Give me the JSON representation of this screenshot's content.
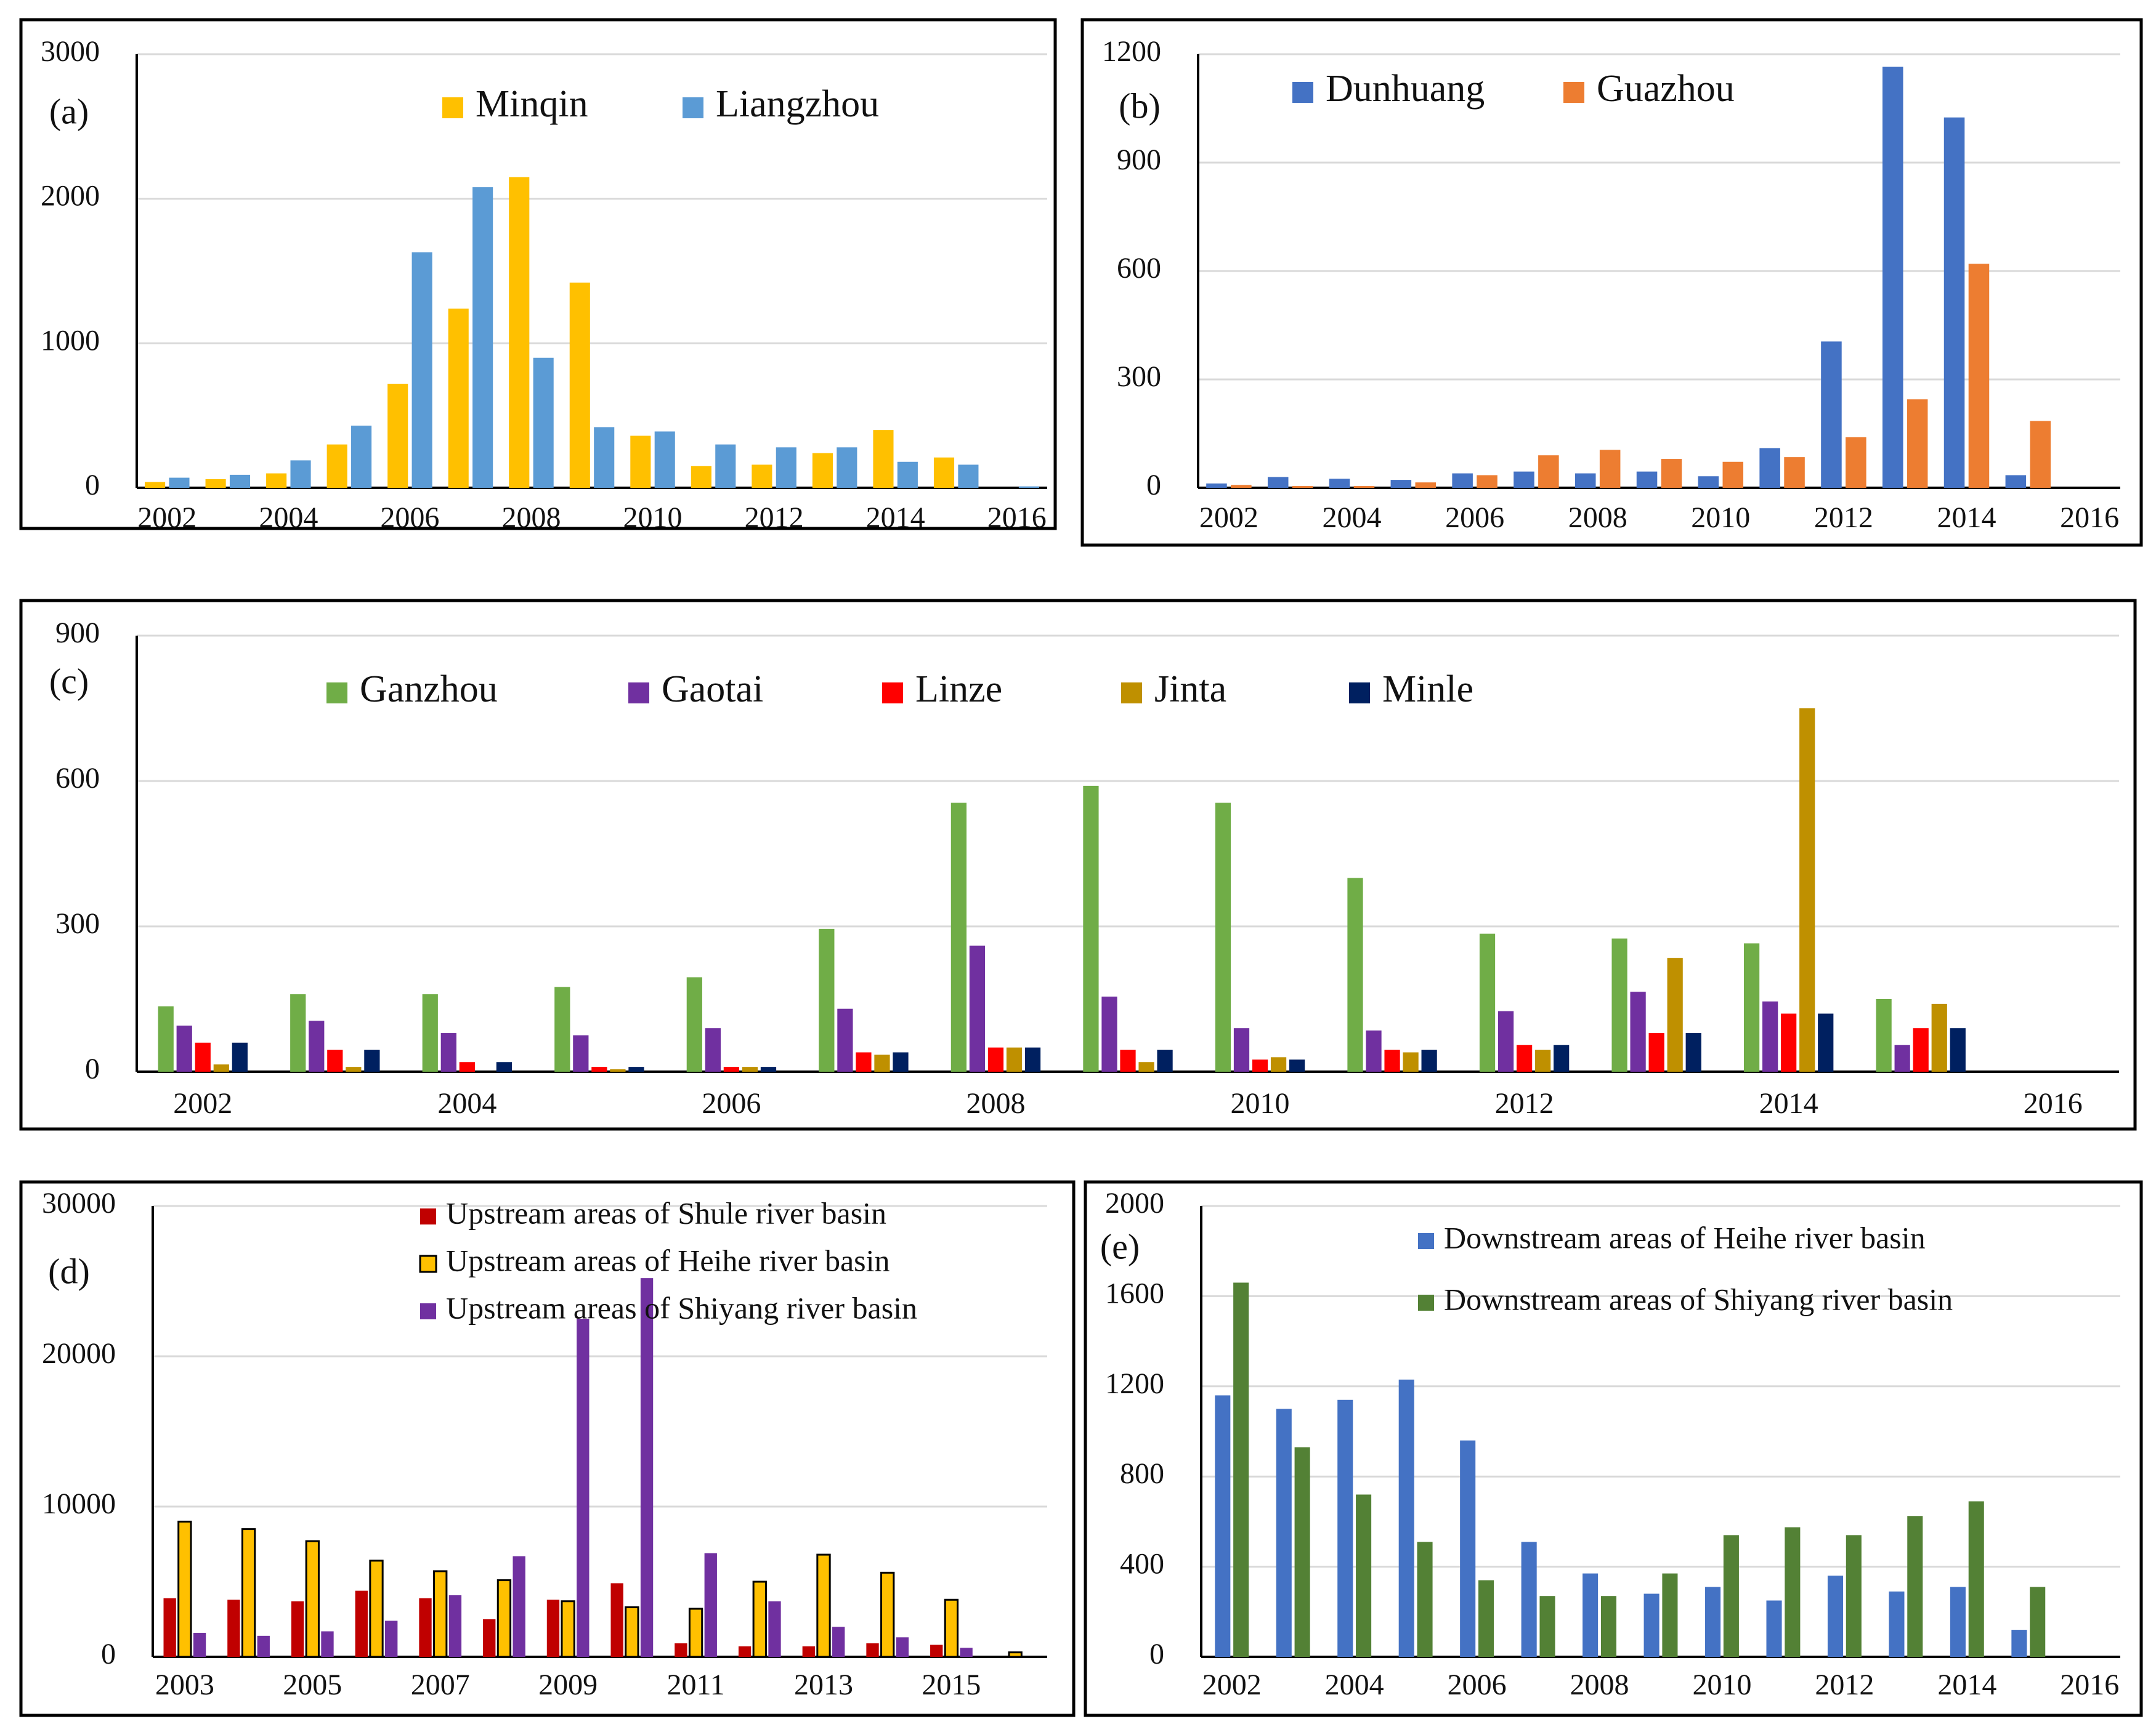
{
  "colors": {
    "minqin": "#FFC000",
    "liangzhou": "#5B9BD5",
    "dunhuang": "#4472C4",
    "guazhou": "#ED7D31",
    "ganzhou": "#70AD47",
    "gaotai": "#7030A0",
    "linze": "#FF0000",
    "jinta": "#BF9000",
    "minle": "#002060",
    "shule_up": "#C00000",
    "heihe_up": "#FFC000",
    "shiyang_up": "#7030A0",
    "heihe_down": "#4472C4",
    "shiyang_down": "#538135",
    "grid": "#D9D9D9",
    "axis": "#000000"
  },
  "chart_data": [
    {
      "panel": "(a)",
      "type": "bar",
      "x": [
        2002,
        2003,
        2004,
        2005,
        2006,
        2007,
        2008,
        2009,
        2010,
        2011,
        2012,
        2013,
        2014,
        2015,
        2016
      ],
      "xticks": [
        "2002",
        "2004",
        "2006",
        "2008",
        "2010",
        "2012",
        "2014",
        "2016"
      ],
      "yticks": [
        "0",
        "1000",
        "2000",
        "3000"
      ],
      "ylim": [
        0,
        3000
      ],
      "legend_position": "top-center",
      "series": [
        {
          "name": "Minqin",
          "color_key": "minqin",
          "values": [
            40,
            60,
            100,
            300,
            720,
            1240,
            2150,
            1420,
            360,
            150,
            160,
            240,
            400,
            210,
            0
          ]
        },
        {
          "name": "Liangzhou",
          "color_key": "liangzhou",
          "values": [
            70,
            90,
            190,
            430,
            1630,
            2080,
            900,
            420,
            390,
            300,
            280,
            280,
            180,
            160,
            10
          ]
        }
      ]
    },
    {
      "panel": "(b)",
      "type": "bar",
      "x": [
        2002,
        2003,
        2004,
        2005,
        2006,
        2007,
        2008,
        2009,
        2010,
        2011,
        2012,
        2013,
        2014,
        2015,
        2016
      ],
      "xticks": [
        "2002",
        "2004",
        "2006",
        "2008",
        "2010",
        "2012",
        "2014",
        "2016"
      ],
      "yticks": [
        "0",
        "300",
        "600",
        "900",
        "1200"
      ],
      "ylim": [
        0,
        1200
      ],
      "legend_position": "top-left",
      "series": [
        {
          "name": "Dunhuang",
          "color_key": "dunhuang",
          "values": [
            12,
            30,
            25,
            22,
            40,
            45,
            40,
            45,
            32,
            110,
            405,
            1165,
            1025,
            35,
            0
          ]
        },
        {
          "name": "Guazhou",
          "color_key": "guazhou",
          "values": [
            8,
            5,
            5,
            15,
            35,
            90,
            105,
            80,
            72,
            85,
            140,
            245,
            620,
            185,
            0
          ]
        }
      ]
    },
    {
      "panel": "(c)",
      "type": "bar",
      "x": [
        2002,
        2003,
        2004,
        2005,
        2006,
        2007,
        2008,
        2009,
        2010,
        2011,
        2012,
        2013,
        2014,
        2015,
        2016
      ],
      "xticks": [
        "2002",
        "2004",
        "2006",
        "2008",
        "2010",
        "2012",
        "2014",
        "2016"
      ],
      "yticks": [
        "0",
        "300",
        "600",
        "900"
      ],
      "ylim": [
        0,
        900
      ],
      "legend_position": "top-center",
      "series": [
        {
          "name": "Ganzhou",
          "color_key": "ganzhou",
          "values": [
            135,
            160,
            160,
            175,
            195,
            295,
            555,
            590,
            555,
            400,
            285,
            275,
            265,
            150,
            0
          ]
        },
        {
          "name": "Gaotai",
          "color_key": "gaotai",
          "values": [
            95,
            105,
            80,
            75,
            90,
            130,
            260,
            155,
            90,
            85,
            125,
            165,
            145,
            55,
            0
          ]
        },
        {
          "name": "Linze",
          "color_key": "linze",
          "values": [
            60,
            45,
            20,
            10,
            10,
            40,
            50,
            45,
            25,
            45,
            55,
            80,
            120,
            90,
            0
          ]
        },
        {
          "name": "Jinta",
          "color_key": "jinta",
          "values": [
            15,
            10,
            0,
            5,
            10,
            35,
            50,
            20,
            30,
            40,
            45,
            235,
            750,
            140,
            0
          ]
        },
        {
          "name": "Minle",
          "color_key": "minle",
          "values": [
            60,
            45,
            20,
            10,
            10,
            40,
            50,
            45,
            25,
            45,
            55,
            80,
            120,
            90,
            0
          ]
        }
      ]
    },
    {
      "panel": "(d)",
      "type": "bar",
      "x": [
        2003,
        2004,
        2005,
        2006,
        2007,
        2008,
        2009,
        2010,
        2011,
        2012,
        2013,
        2014,
        2015,
        2016
      ],
      "xticks": [
        "2003",
        "2005",
        "2007",
        "2009",
        "2011",
        "2013",
        "2015"
      ],
      "yticks": [
        "0",
        "10000",
        "20000",
        "30000"
      ],
      "ylim": [
        0,
        30000
      ],
      "legend_position": "top-right",
      "series": [
        {
          "name": "Upstream areas of Shule river basin",
          "color_key": "shule_up",
          "outlined": false,
          "values": [
            3900,
            3800,
            3700,
            4400,
            3900,
            2500,
            3800,
            4900,
            900,
            700,
            700,
            900,
            800,
            0
          ]
        },
        {
          "name": "Upstream areas of Heihe river basin",
          "color_key": "heihe_up",
          "outlined": true,
          "values": [
            9000,
            8500,
            7700,
            6400,
            5700,
            5100,
            3700,
            3300,
            3200,
            5000,
            6800,
            5600,
            3800,
            300
          ]
        },
        {
          "name": "Upstream areas of Shiyang river basin",
          "color_key": "shiyang_up",
          "outlined": false,
          "values": [
            1600,
            1400,
            1700,
            2400,
            4100,
            6700,
            22500,
            25200,
            6900,
            3700,
            2000,
            1300,
            600,
            0
          ]
        }
      ]
    },
    {
      "panel": "(e)",
      "type": "bar",
      "x": [
        2002,
        2003,
        2004,
        2005,
        2006,
        2007,
        2008,
        2009,
        2010,
        2011,
        2012,
        2013,
        2014,
        2015,
        2016
      ],
      "xticks": [
        "2002",
        "2004",
        "2006",
        "2008",
        "2010",
        "2012",
        "2014",
        "2016"
      ],
      "yticks": [
        "0",
        "400",
        "800",
        "1200",
        "1600",
        "2000"
      ],
      "ylim": [
        0,
        2000
      ],
      "legend_position": "top-right",
      "series": [
        {
          "name": "Downstream areas of Heihe river basin",
          "color_key": "heihe_down",
          "values": [
            1160,
            1100,
            1140,
            1230,
            960,
            510,
            370,
            280,
            310,
            250,
            360,
            290,
            310,
            120,
            0
          ]
        },
        {
          "name": "Downstream areas of Shiyang river basin",
          "color_key": "shiyang_down",
          "values": [
            1660,
            930,
            720,
            510,
            340,
            270,
            270,
            370,
            540,
            575,
            540,
            625,
            690,
            310,
            0
          ]
        }
      ]
    }
  ]
}
